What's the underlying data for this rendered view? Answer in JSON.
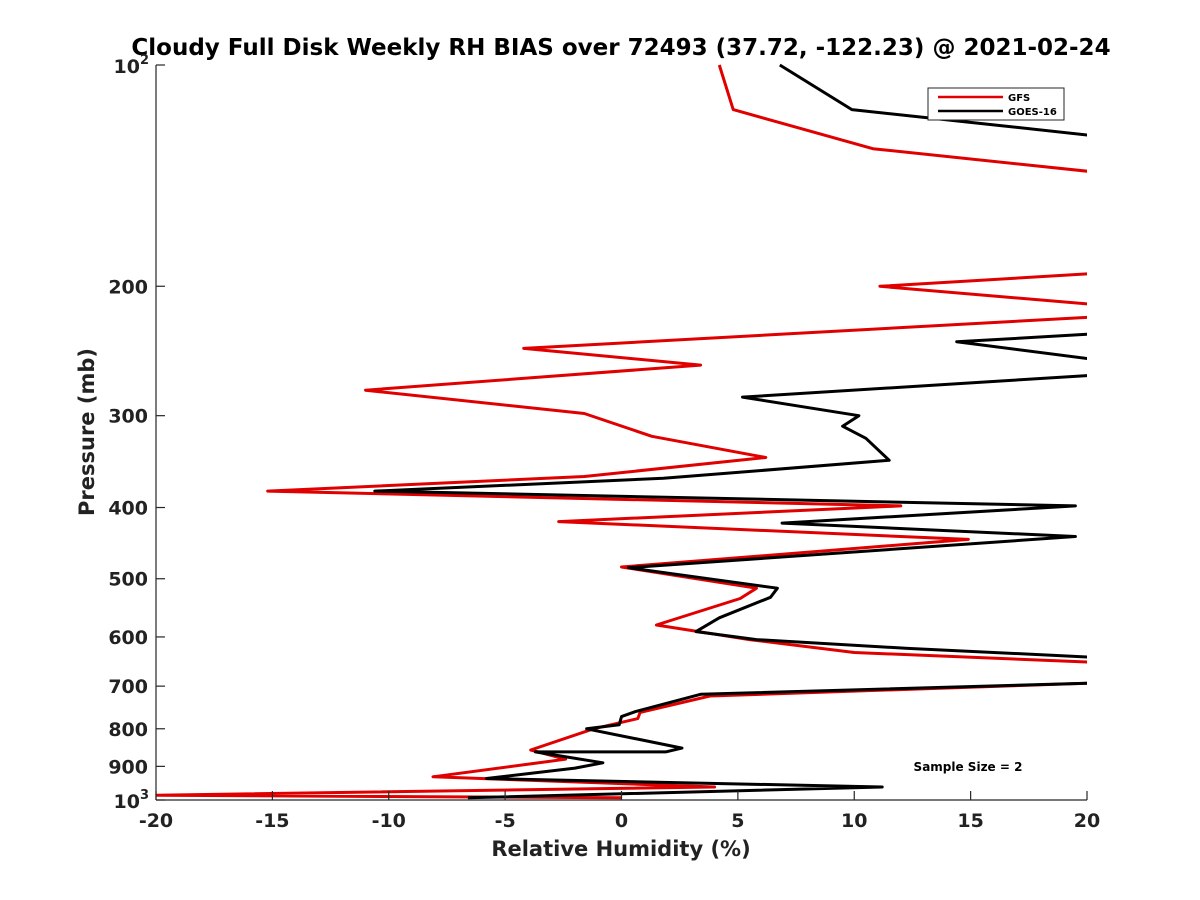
{
  "chart_data": {
    "type": "line",
    "title": "Cloudy Full Disk Weekly RH BIAS over 72493 (37.72, -122.23) @ 2021-02-24",
    "xlabel": "Relative Humidity (%)",
    "ylabel": "Pressure (mb)",
    "xlim": [
      -20,
      20
    ],
    "ylim": [
      100,
      1000
    ],
    "y_scale": "log",
    "y_reversed": true,
    "x_ticks": [
      "-20",
      "-15",
      "-10",
      "-5",
      "0",
      "5",
      "10",
      "15",
      "20"
    ],
    "y_ticks": [
      {
        "value": 100,
        "base": "10",
        "exp": "2"
      },
      {
        "value": 200,
        "base": "200",
        "exp": ""
      },
      {
        "value": 300,
        "base": "300",
        "exp": ""
      },
      {
        "value": 400,
        "base": "400",
        "exp": ""
      },
      {
        "value": 500,
        "base": "500",
        "exp": ""
      },
      {
        "value": 600,
        "base": "600",
        "exp": ""
      },
      {
        "value": 700,
        "base": "700",
        "exp": ""
      },
      {
        "value": 800,
        "base": "800",
        "exp": ""
      },
      {
        "value": 900,
        "base": "900",
        "exp": ""
      },
      {
        "value": 1000,
        "base": "10",
        "exp": "3"
      }
    ],
    "grid": false,
    "legend_position": "top-right",
    "annotation": "Sample Size = 2",
    "series": [
      {
        "name": "GFS",
        "color": "#e00000",
        "points": [
          [
            4.2,
            100
          ],
          [
            4.8,
            115
          ],
          [
            10.8,
            130
          ],
          [
            20.5,
            140
          ],
          [
            20.5,
            192
          ],
          [
            11.1,
            200
          ],
          [
            20.5,
            212
          ],
          [
            20.5,
            220
          ],
          [
            -4.2,
            243
          ],
          [
            3.4,
            256
          ],
          [
            -11.0,
            277
          ],
          [
            -1.6,
            298
          ],
          [
            1.3,
            320
          ],
          [
            6.2,
            342
          ],
          [
            -1.6,
            363
          ],
          [
            -15.2,
            380
          ],
          [
            12.0,
            398
          ],
          [
            -2.7,
            418
          ],
          [
            14.9,
            442
          ],
          [
            0.0,
            482
          ],
          [
            5.8,
            515
          ],
          [
            5.1,
            532
          ],
          [
            1.5,
            578
          ],
          [
            5.5,
            605
          ],
          [
            10.0,
            630
          ],
          [
            20.5,
            650
          ],
          [
            20.5,
            693
          ],
          [
            3.8,
            722
          ],
          [
            0.8,
            760
          ],
          [
            0.7,
            775
          ],
          [
            -1.2,
            800
          ],
          [
            -3.9,
            855
          ],
          [
            -2.4,
            880
          ],
          [
            -8.1,
            930
          ],
          [
            4.0,
            960
          ],
          [
            -20.0,
            985
          ],
          [
            0.0,
            993
          ]
        ]
      },
      {
        "name": "GOES-16",
        "color": "#000000",
        "points": [
          [
            6.8,
            100
          ],
          [
            9.9,
            115
          ],
          [
            20.5,
            125
          ],
          [
            20.5,
            232
          ],
          [
            14.4,
            238
          ],
          [
            20.5,
            252
          ],
          [
            20.5,
            264
          ],
          [
            5.2,
            283
          ],
          [
            10.2,
            300
          ],
          [
            9.5,
            310
          ],
          [
            10.5,
            322
          ],
          [
            11.5,
            345
          ],
          [
            1.8,
            365
          ],
          [
            -10.6,
            380
          ],
          [
            19.5,
            398
          ],
          [
            6.9,
            420
          ],
          [
            19.5,
            438
          ],
          [
            0.3,
            483
          ],
          [
            6.7,
            515
          ],
          [
            6.4,
            530
          ],
          [
            4.2,
            565
          ],
          [
            3.2,
            590
          ],
          [
            5.8,
            605
          ],
          [
            12.3,
            622
          ],
          [
            20.5,
            640
          ],
          [
            20.5,
            693
          ],
          [
            3.4,
            718
          ],
          [
            0.6,
            758
          ],
          [
            0.0,
            770
          ],
          [
            -0.1,
            790
          ],
          [
            -1.5,
            800
          ],
          [
            2.6,
            850
          ],
          [
            1.9,
            860
          ],
          [
            -3.7,
            860
          ],
          [
            -0.8,
            890
          ],
          [
            -2.0,
            905
          ],
          [
            -5.8,
            935
          ],
          [
            11.2,
            960
          ],
          [
            -6.6,
            993
          ]
        ]
      }
    ]
  }
}
